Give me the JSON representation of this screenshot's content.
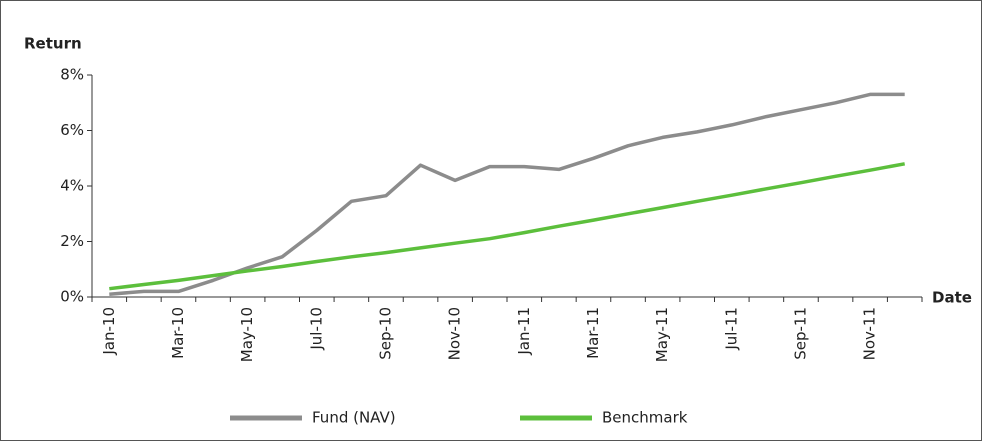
{
  "chart_data": {
    "type": "line",
    "y_label": "Return",
    "x_label": "Date",
    "categories": [
      "Jan-10",
      null,
      "Mar-10",
      null,
      "May-10",
      null,
      "Jul-10",
      null,
      "Sep-10",
      null,
      "Nov-10",
      null,
      "Jan-11",
      null,
      "Mar-11",
      null,
      "May-11",
      null,
      "Jul-11",
      null,
      "Sep-11",
      null,
      "Nov-11",
      null
    ],
    "series": [
      {
        "name": "Fund (NAV)",
        "color": "#8c8c8c",
        "values": [
          0.1,
          0.2,
          0.2,
          0.6,
          1.05,
          1.45,
          2.4,
          3.45,
          3.65,
          4.75,
          4.2,
          4.7,
          4.7,
          4.6,
          5.0,
          5.45,
          5.75,
          5.95,
          6.2,
          6.5,
          6.75,
          7.0,
          7.3,
          7.3
        ]
      },
      {
        "name": "Benchmark",
        "color": "#5cbf3c",
        "values": [
          0.3,
          0.45,
          0.6,
          0.77,
          0.94,
          1.1,
          1.28,
          1.45,
          1.6,
          1.77,
          1.94,
          2.1,
          2.32,
          2.55,
          2.77,
          3.0,
          3.22,
          3.45,
          3.67,
          3.9,
          4.12,
          4.35,
          4.57,
          4.8
        ]
      }
    ],
    "ylim": [
      0,
      8
    ],
    "yticks": [
      {
        "value": 0,
        "label": "0%"
      },
      {
        "value": 2,
        "label": "2%"
      },
      {
        "value": 4,
        "label": "4%"
      },
      {
        "value": 6,
        "label": "6%"
      },
      {
        "value": 8,
        "label": "8%"
      }
    ],
    "grid": false,
    "legend": "bottom"
  }
}
